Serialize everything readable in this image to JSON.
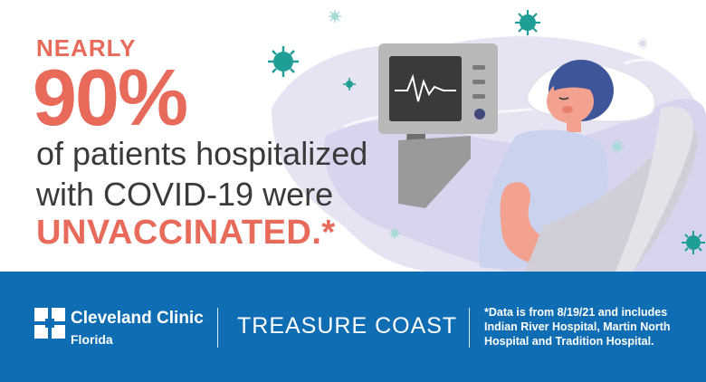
{
  "headline": {
    "kicker": "NEARLY",
    "stat": "90%",
    "line1": "of patients hospitalized",
    "line2": "with COVID-19 were",
    "line3": "UNVACCINATED.*"
  },
  "footer": {
    "brand_name": "Cleveland Clinic",
    "brand_sub": "Florida",
    "region": "TREASURE COAST",
    "footnote": "*Data is from 8/19/21 and includes Indian River Hospital, Martin North Hospital and Tradition Hospital."
  },
  "colors": {
    "accent": "#e86a5a",
    "footer_bg": "#0e6db3",
    "body_text": "#3a3a3a"
  },
  "icons": [
    "virus-icon",
    "sparkle-icon",
    "monitor-icon",
    "cleveland-clinic-logo-icon"
  ]
}
